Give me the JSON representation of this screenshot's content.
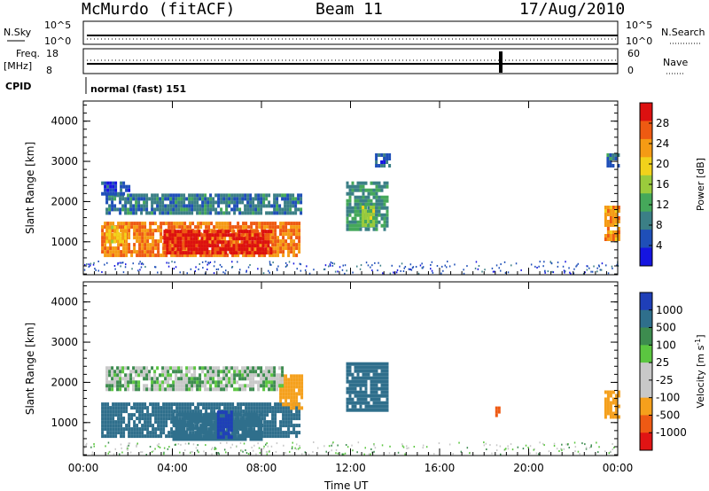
{
  "header": {
    "station": "McMurdo (fitACF)",
    "beam": "Beam 11",
    "date": "17/Aug/2010"
  },
  "top_panels": {
    "nsky_label": "N.Sky",
    "nsky_ticks": [
      "10^5",
      "10^0"
    ],
    "nsearch_label": "N.Search",
    "nsearch_ticks": [
      "10^5",
      "10^0"
    ],
    "freq_label": "Freq.",
    "freq_unit": "[MHz]",
    "freq_ticks": [
      "18",
      "8"
    ],
    "nave_label": "Nave",
    "nave_ticks": [
      "60",
      "0"
    ],
    "cpid_label": "CPID",
    "cpid_value": "normal (fast) 151"
  },
  "colors": {
    "power_scale": [
      "#1515e0",
      "#1f4fb8",
      "#3b7f86",
      "#45a85a",
      "#9acb3c",
      "#f2d21b",
      "#f59b14",
      "#ee5a12",
      "#dc1010"
    ],
    "velocity_scale": [
      "#e01414",
      "#ee5a14",
      "#f5a01c",
      "#c8c8c8",
      "#c8c8c8",
      "#5bc640",
      "#3d8c4f",
      "#2f6f8c",
      "#1f3fb8"
    ]
  },
  "chart_data": [
    {
      "type": "heatmap",
      "title": "Power",
      "ylabel": "Slant Range [km]",
      "xlabel": "",
      "x_range_hours": [
        0,
        24
      ],
      "ylim": [
        180,
        4500
      ],
      "yticks": [
        "1000",
        "2000",
        "3000",
        "4000"
      ],
      "xticks": [
        "00:00",
        "04:00",
        "08:00",
        "12:00",
        "16:00",
        "20:00",
        "00:00"
      ],
      "colorbar_label": "Power [dB]",
      "colorbar_ticks": [
        "4",
        "8",
        "12",
        "16",
        "20",
        "24",
        "28"
      ],
      "colorbar_range": [
        0,
        30
      ],
      "regions": [
        {
          "t0": 0.8,
          "t1": 9.7,
          "r0": 650,
          "r1": 1500,
          "value": 23
        },
        {
          "t0": 1.0,
          "t1": 1.9,
          "r0": 1000,
          "r1": 1400,
          "value": 19
        },
        {
          "t0": 3.6,
          "t1": 8.4,
          "r0": 700,
          "r1": 1300,
          "value": 28
        },
        {
          "t0": 1.0,
          "t1": 9.8,
          "r0": 1700,
          "r1": 2200,
          "value": 8
        },
        {
          "t0": 0.8,
          "t1": 2.0,
          "r0": 2200,
          "r1": 2500,
          "value": 5
        },
        {
          "t0": 11.8,
          "t1": 13.6,
          "r0": 1300,
          "r1": 2500,
          "value": 10
        },
        {
          "t0": 12.5,
          "t1": 13.0,
          "r0": 1400,
          "r1": 1900,
          "value": 15
        },
        {
          "t0": 13.1,
          "t1": 13.7,
          "r0": 2900,
          "r1": 3200,
          "value": 5
        },
        {
          "t0": 23.4,
          "t1": 24.0,
          "r0": 1100,
          "r1": 1900,
          "value": 22
        },
        {
          "t0": 23.5,
          "t1": 24.0,
          "r0": 2900,
          "r1": 3200,
          "value": 8
        }
      ]
    },
    {
      "type": "heatmap",
      "title": "Velocity",
      "ylabel": "Slant Range [km]",
      "xlabel": "Time UT",
      "x_range_hours": [
        0,
        24
      ],
      "ylim": [
        180,
        4500
      ],
      "yticks": [
        "1000",
        "2000",
        "3000",
        "4000"
      ],
      "xticks": [
        "00:00",
        "04:00",
        "08:00",
        "12:00",
        "16:00",
        "20:00",
        "00:00"
      ],
      "colorbar_label": "Velocity [m s",
      "colorbar_label_sup": "-1",
      "colorbar_label_end": "]",
      "colorbar_ticks": [
        "1000",
        "500",
        "100",
        "25",
        "-25",
        "-100",
        "-500",
        "-1000"
      ],
      "regions": [
        {
          "t0": 0.8,
          "t1": 9.7,
          "r0": 650,
          "r1": 1500,
          "value": 200
        },
        {
          "t0": 4.0,
          "t1": 8.0,
          "r0": 600,
          "r1": 1250,
          "value": 300
        },
        {
          "t0": 6.0,
          "t1": 6.7,
          "r0": 600,
          "r1": 1300,
          "value": 1000
        },
        {
          "t0": 8.8,
          "t1": 9.8,
          "r0": 1400,
          "r1": 2200,
          "value": -300
        },
        {
          "t0": 1.0,
          "t1": 9.0,
          "r0": 1800,
          "r1": 2400,
          "value": 0
        },
        {
          "t0": 11.8,
          "t1": 13.6,
          "r0": 1300,
          "r1": 2500,
          "value": 300
        },
        {
          "t0": 23.4,
          "t1": 24.0,
          "r0": 1100,
          "r1": 1800,
          "value": -300
        },
        {
          "t0": 18.5,
          "t1": 18.7,
          "r0": 1150,
          "r1": 1400,
          "value": -700
        }
      ]
    }
  ]
}
